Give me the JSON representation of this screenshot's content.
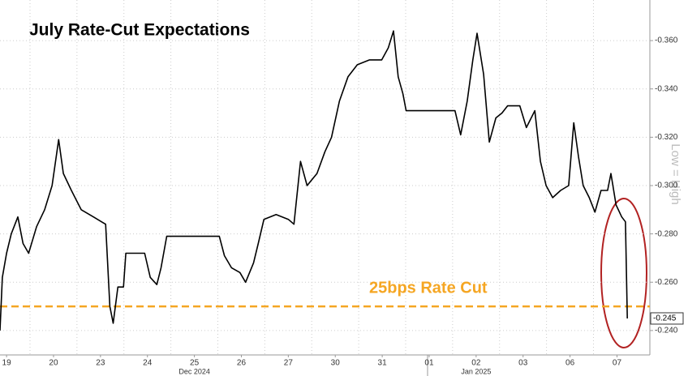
{
  "chart_data": {
    "type": "line",
    "title": "July Rate-Cut Expectations",
    "x": [
      -0.14,
      -0.09,
      0,
      0.1,
      0.24,
      0.35,
      0.47,
      0.64,
      0.81,
      0.97,
      1.11,
      1.21,
      1.38,
      1.59,
      1.85,
      2.11,
      2.2,
      2.27,
      2.37,
      2.49,
      2.54,
      2.94,
      3.06,
      3.2,
      3.29,
      3.41,
      4.53,
      4.64,
      4.79,
      4.97,
      5.09,
      5.26,
      5.36,
      5.48,
      5.74,
      6.0,
      6.12,
      6.26,
      6.4,
      6.61,
      6.78,
      6.92,
      7.09,
      7.27,
      7.47,
      7.73,
      7.99,
      8.13,
      8.24,
      8.34,
      8.44,
      8.51,
      9.55,
      9.67,
      9.81,
      9.93,
      10.02,
      10.16,
      10.28,
      10.42,
      10.55,
      10.67,
      10.93,
      11.07,
      11.25,
      11.37,
      11.49,
      11.63,
      11.8,
      11.97,
      12.08,
      12.18,
      12.28,
      12.41,
      12.53,
      12.66,
      12.8,
      12.87,
      12.98,
      13.1,
      13.18,
      13.22
    ],
    "series": [
      {
        "name": "July Rate-Cut Expectations",
        "color": "#000000",
        "values": [
          -0.24,
          -0.262,
          -0.272,
          -0.28,
          -0.287,
          -0.276,
          -0.272,
          -0.283,
          -0.29,
          -0.3,
          -0.319,
          -0.305,
          -0.298,
          -0.29,
          -0.287,
          -0.284,
          -0.25,
          -0.243,
          -0.258,
          -0.258,
          -0.272,
          -0.272,
          -0.262,
          -0.259,
          -0.266,
          -0.279,
          -0.279,
          -0.271,
          -0.266,
          -0.264,
          -0.26,
          -0.268,
          -0.276,
          -0.286,
          -0.288,
          -0.286,
          -0.284,
          -0.31,
          -0.3,
          -0.305,
          -0.314,
          -0.32,
          -0.335,
          -0.345,
          -0.35,
          -0.352,
          -0.352,
          -0.357,
          -0.364,
          -0.345,
          -0.338,
          -0.331,
          -0.331,
          -0.321,
          -0.335,
          -0.352,
          -0.363,
          -0.346,
          -0.318,
          -0.328,
          -0.33,
          -0.333,
          -0.333,
          -0.324,
          -0.331,
          -0.31,
          -0.3,
          -0.295,
          -0.298,
          -0.3,
          -0.326,
          -0.312,
          -0.3,
          -0.295,
          -0.289,
          -0.298,
          -0.298,
          -0.305,
          -0.292,
          -0.287,
          -0.285,
          -0.245
        ]
      }
    ],
    "last_value_label": "-0.245",
    "xlim": [
      -0.14,
      13.7
    ],
    "ylim": [
      -0.2299,
      -0.3768
    ],
    "xticks": [
      {
        "value": 0,
        "label": "19"
      },
      {
        "value": 1,
        "label": "20"
      },
      {
        "value": 2,
        "label": "23"
      },
      {
        "value": 3,
        "label": "24"
      },
      {
        "value": 4,
        "label": "25"
      },
      {
        "value": 5,
        "label": "26"
      },
      {
        "value": 6,
        "label": "27"
      },
      {
        "value": 7,
        "label": "30"
      },
      {
        "value": 8,
        "label": "31"
      },
      {
        "value": 9,
        "label": "01"
      },
      {
        "value": 10,
        "label": "02"
      },
      {
        "value": 11,
        "label": "03"
      },
      {
        "value": 12,
        "label": "06"
      },
      {
        "value": 13,
        "label": "07"
      }
    ],
    "month_labels": [
      {
        "value": 4,
        "label": "Dec 2024"
      },
      {
        "value": 10,
        "label": "Jan 2025"
      }
    ],
    "yticks": [
      {
        "value": -0.36,
        "label": "-0.360"
      },
      {
        "value": -0.34,
        "label": "-0.340"
      },
      {
        "value": -0.32,
        "label": "-0.320"
      },
      {
        "value": -0.3,
        "label": "-0.300"
      },
      {
        "value": -0.28,
        "label": "-0.280"
      },
      {
        "value": -0.26,
        "label": "-0.260"
      },
      {
        "value": -0.24,
        "label": "-0.240"
      }
    ],
    "reference_line": {
      "value": -0.25,
      "label": "25bps Rate Cut",
      "color": "#f5a623"
    },
    "axis_note": "Low = High",
    "grid": true
  }
}
